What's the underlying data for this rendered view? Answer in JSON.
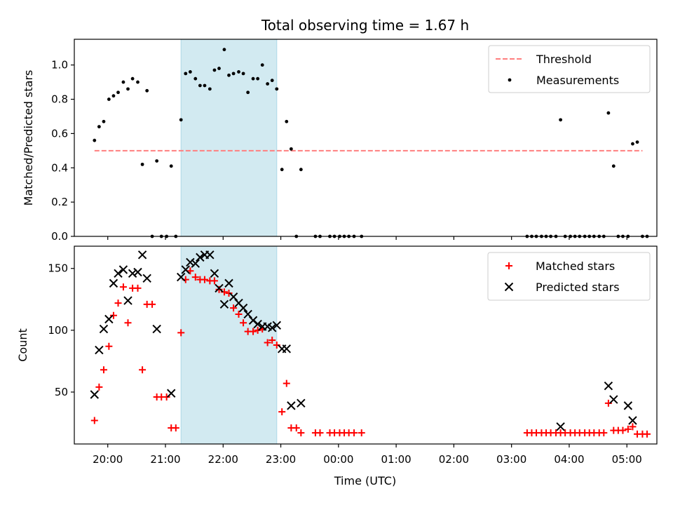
{
  "chart_data": {
    "type": "scatter",
    "title": "Total observing time = 1.67 h",
    "x_label": "Time (UTC)",
    "x_ticks": [
      "20:00",
      "21:00",
      "22:00",
      "23:00",
      "00:00",
      "01:00",
      "02:00",
      "03:00",
      "04:00",
      "05:00"
    ],
    "x_range_hours": [
      19.42,
      29.52
    ],
    "observing_window_hours": [
      21.27,
      22.93
    ],
    "colors": {
      "highlight": "#add8e6",
      "threshold": "#ff7f7f",
      "measurements": "#000000",
      "matched": "#ff0000",
      "predicted": "#000000"
    },
    "panels": [
      {
        "name": "ratio",
        "ylabel": "Matched/Predicted stars",
        "ylim": [
          0,
          1.15
        ],
        "y_ticks": [
          "0.0",
          "0.2",
          "0.4",
          "0.6",
          "0.8",
          "1.0"
        ],
        "legend": {
          "placement": "upper right",
          "entries": [
            "Threshold",
            "Measurements"
          ]
        },
        "threshold": {
          "name": "Threshold",
          "value": 0.5,
          "x_range_hours": [
            19.77,
            29.27
          ]
        },
        "series": [
          {
            "name": "Measurements",
            "marker": "dot",
            "points": [
              [
                19.77,
                0.56
              ],
              [
                19.85,
                0.64
              ],
              [
                19.93,
                0.67
              ],
              [
                20.02,
                0.8
              ],
              [
                20.1,
                0.82
              ],
              [
                20.18,
                0.84
              ],
              [
                20.27,
                0.9
              ],
              [
                20.35,
                0.86
              ],
              [
                20.43,
                0.92
              ],
              [
                20.52,
                0.9
              ],
              [
                20.6,
                0.42
              ],
              [
                20.68,
                0.85
              ],
              [
                20.77,
                0.0
              ],
              [
                20.85,
                0.44
              ],
              [
                20.93,
                0.0
              ],
              [
                21.02,
                0.0
              ],
              [
                21.1,
                0.41
              ],
              [
                21.18,
                0.0
              ],
              [
                21.27,
                0.68
              ],
              [
                21.35,
                0.95
              ],
              [
                21.43,
                0.96
              ],
              [
                21.52,
                0.92
              ],
              [
                21.6,
                0.88
              ],
              [
                21.68,
                0.88
              ],
              [
                21.77,
                0.86
              ],
              [
                21.85,
                0.97
              ],
              [
                21.93,
                0.98
              ],
              [
                22.02,
                1.09
              ],
              [
                22.1,
                0.94
              ],
              [
                22.18,
                0.95
              ],
              [
                22.27,
                0.96
              ],
              [
                22.35,
                0.95
              ],
              [
                22.43,
                0.84
              ],
              [
                22.52,
                0.92
              ],
              [
                22.6,
                0.92
              ],
              [
                22.68,
                1.0
              ],
              [
                22.77,
                0.89
              ],
              [
                22.85,
                0.91
              ],
              [
                22.93,
                0.86
              ],
              [
                23.02,
                0.39
              ],
              [
                23.1,
                0.67
              ],
              [
                23.18,
                0.51
              ],
              [
                23.27,
                0.0
              ],
              [
                23.35,
                0.39
              ],
              [
                23.6,
                0.0
              ],
              [
                23.68,
                0.0
              ],
              [
                23.85,
                0.0
              ],
              [
                23.93,
                0.0
              ],
              [
                24.02,
                0.0
              ],
              [
                24.1,
                0.0
              ],
              [
                24.18,
                0.0
              ],
              [
                24.27,
                0.0
              ],
              [
                24.4,
                0.0
              ],
              [
                27.27,
                0.0
              ],
              [
                27.35,
                0.0
              ],
              [
                27.43,
                0.0
              ],
              [
                27.52,
                0.0
              ],
              [
                27.6,
                0.0
              ],
              [
                27.68,
                0.0
              ],
              [
                27.77,
                0.0
              ],
              [
                27.85,
                0.68
              ],
              [
                27.93,
                0.0
              ],
              [
                28.02,
                0.0
              ],
              [
                28.1,
                0.0
              ],
              [
                28.18,
                0.0
              ],
              [
                28.27,
                0.0
              ],
              [
                28.35,
                0.0
              ],
              [
                28.43,
                0.0
              ],
              [
                28.52,
                0.0
              ],
              [
                28.6,
                0.0
              ],
              [
                28.68,
                0.72
              ],
              [
                28.77,
                0.41
              ],
              [
                28.85,
                0.0
              ],
              [
                28.93,
                0.0
              ],
              [
                29.02,
                0.0
              ],
              [
                29.1,
                0.54
              ],
              [
                29.18,
                0.55
              ],
              [
                29.27,
                0.0
              ],
              [
                29.35,
                0.0
              ]
            ]
          }
        ]
      },
      {
        "name": "count",
        "ylabel": "Count",
        "ylim": [
          8,
          168
        ],
        "y_ticks": [
          "50",
          "100",
          "150"
        ],
        "legend": {
          "placement": "upper right",
          "entries": [
            "Matched stars",
            "Predicted stars"
          ]
        },
        "series": [
          {
            "name": "Matched stars",
            "marker": "plus",
            "points": [
              [
                19.77,
                27
              ],
              [
                19.85,
                54
              ],
              [
                19.93,
                68
              ],
              [
                20.02,
                87
              ],
              [
                20.1,
                112
              ],
              [
                20.18,
                122
              ],
              [
                20.27,
                135
              ],
              [
                20.35,
                106
              ],
              [
                20.43,
                134
              ],
              [
                20.52,
                134
              ],
              [
                20.6,
                68
              ],
              [
                20.68,
                121
              ],
              [
                20.77,
                121
              ],
              [
                20.85,
                46
              ],
              [
                20.93,
                46
              ],
              [
                21.02,
                46
              ],
              [
                21.1,
                21
              ],
              [
                21.18,
                21
              ],
              [
                21.27,
                98
              ],
              [
                21.35,
                141
              ],
              [
                21.43,
                148
              ],
              [
                21.52,
                143
              ],
              [
                21.6,
                141
              ],
              [
                21.68,
                141
              ],
              [
                21.77,
                140
              ],
              [
                21.85,
                140
              ],
              [
                21.93,
                133
              ],
              [
                22.02,
                131
              ],
              [
                22.1,
                130
              ],
              [
                22.18,
                118
              ],
              [
                22.27,
                113
              ],
              [
                22.35,
                106
              ],
              [
                22.43,
                99
              ],
              [
                22.52,
                99
              ],
              [
                22.6,
                100
              ],
              [
                22.68,
                101
              ],
              [
                22.77,
                90
              ],
              [
                22.85,
                92
              ],
              [
                22.93,
                88
              ],
              [
                23.02,
                34
              ],
              [
                23.1,
                57
              ],
              [
                23.18,
                21
              ],
              [
                23.27,
                21
              ],
              [
                23.35,
                17
              ],
              [
                23.6,
                17
              ],
              [
                23.68,
                17
              ],
              [
                23.85,
                17
              ],
              [
                23.93,
                17
              ],
              [
                24.02,
                17
              ],
              [
                24.1,
                17
              ],
              [
                24.18,
                17
              ],
              [
                24.27,
                17
              ],
              [
                24.4,
                17
              ],
              [
                27.27,
                17
              ],
              [
                27.35,
                17
              ],
              [
                27.43,
                17
              ],
              [
                27.52,
                17
              ],
              [
                27.6,
                17
              ],
              [
                27.68,
                17
              ],
              [
                27.77,
                17
              ],
              [
                27.85,
                17
              ],
              [
                27.93,
                17
              ],
              [
                28.02,
                17
              ],
              [
                28.1,
                17
              ],
              [
                28.18,
                17
              ],
              [
                28.27,
                17
              ],
              [
                28.35,
                17
              ],
              [
                28.43,
                17
              ],
              [
                28.52,
                17
              ],
              [
                28.6,
                17
              ],
              [
                28.68,
                41
              ],
              [
                28.77,
                19
              ],
              [
                28.85,
                19
              ],
              [
                28.93,
                19
              ],
              [
                29.02,
                20
              ],
              [
                29.1,
                22
              ],
              [
                29.18,
                16
              ],
              [
                29.27,
                16
              ],
              [
                29.35,
                16
              ]
            ]
          },
          {
            "name": "Predicted stars",
            "marker": "x",
            "points": [
              [
                19.77,
                48
              ],
              [
                19.85,
                84
              ],
              [
                19.93,
                101
              ],
              [
                20.02,
                109
              ],
              [
                20.1,
                138
              ],
              [
                20.18,
                146
              ],
              [
                20.27,
                149
              ],
              [
                20.35,
                124
              ],
              [
                20.43,
                146
              ],
              [
                20.52,
                147
              ],
              [
                20.6,
                161
              ],
              [
                20.68,
                142
              ],
              [
                20.85,
                101
              ],
              [
                21.1,
                49
              ],
              [
                21.27,
                143
              ],
              [
                21.35,
                149
              ],
              [
                21.43,
                155
              ],
              [
                21.52,
                154
              ],
              [
                21.6,
                159
              ],
              [
                21.68,
                161
              ],
              [
                21.77,
                161
              ],
              [
                21.85,
                146
              ],
              [
                21.93,
                134
              ],
              [
                22.02,
                121
              ],
              [
                22.1,
                138
              ],
              [
                22.18,
                127
              ],
              [
                22.27,
                122
              ],
              [
                22.35,
                118
              ],
              [
                22.43,
                113
              ],
              [
                22.52,
                108
              ],
              [
                22.6,
                105
              ],
              [
                22.68,
                103
              ],
              [
                22.77,
                103
              ],
              [
                22.85,
                102
              ],
              [
                22.93,
                104
              ],
              [
                23.02,
                85
              ],
              [
                23.1,
                85
              ],
              [
                23.18,
                39
              ],
              [
                23.35,
                41
              ],
              [
                27.85,
                22
              ],
              [
                28.68,
                55
              ],
              [
                28.77,
                44
              ],
              [
                29.02,
                39
              ],
              [
                29.1,
                27
              ]
            ]
          }
        ]
      }
    ]
  }
}
